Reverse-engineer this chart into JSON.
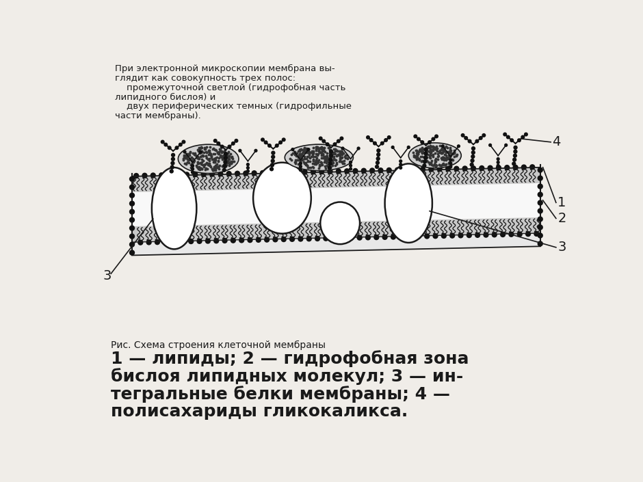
{
  "bg_color": "#f0ede8",
  "top_text_line1": "При электронной микроскопии мембрана вы-",
  "top_text_line2": "глядит как совокупность трех полос:",
  "top_text_line3": "    промежуточной светлой (гидрофобная часть",
  "top_text_line4": "липидного бислоя) и",
  "top_text_line5": "    двух периферических темных (гидрофильные",
  "top_text_line6": "части мембраны).",
  "caption_small": "Рис. Схема строения клеточной мембраны",
  "caption_bold_line1": "1 — липиды; 2 — гидрофобная зона",
  "caption_bold_line2": "бислоя липидных молекул; 3 — ин-",
  "caption_bold_line3": "тегральные белки мембраны; 4 —",
  "caption_bold_line4": "полисахариды гликокаликса.",
  "lc": "#1a1a1a",
  "dc": "#111111",
  "white": "#ffffff",
  "light_gray": "#cccccc",
  "mid_gray": "#999999",
  "stipple": "#b0b0b0"
}
